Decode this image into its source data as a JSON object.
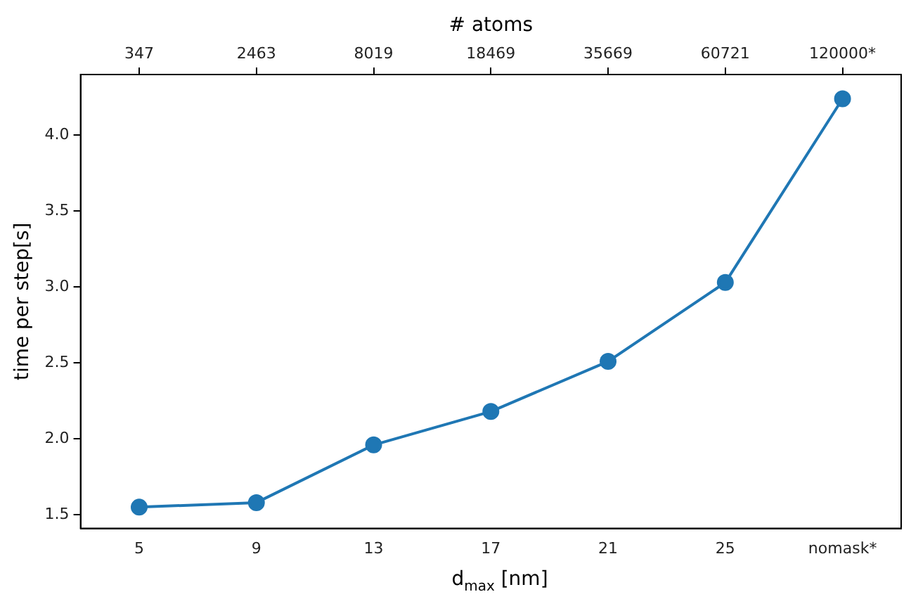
{
  "chart_data": {
    "type": "line",
    "xlabel": "d$_{max}$ [nm]",
    "ylabel": "time per step[s]",
    "x2label": "# atoms",
    "categories": [
      "5",
      "9",
      "13",
      "17",
      "21",
      "25",
      "nomask*"
    ],
    "annotations": [
      {
        "text": "347",
        "x": "5"
      },
      {
        "text": "2463",
        "x": "9"
      },
      {
        "text": "8019",
        "x": "13"
      },
      {
        "text": "18469",
        "x": "17"
      },
      {
        "text": "35669",
        "x": "21"
      },
      {
        "text": "60721",
        "x": "25"
      },
      {
        "text": "120000*",
        "x": "nomask*"
      }
    ],
    "series": [
      {
        "color": "#1f77b4",
        "values": [
          1.55,
          1.58,
          1.96,
          2.18,
          2.51,
          3.03,
          4.24
        ],
        "errors": [
          null,
          null,
          null,
          0.03,
          null,
          null,
          null
        ]
      }
    ],
    "ylim": [
      1.41,
      4.4
    ],
    "yticks": [
      1.5,
      {
        "value": 2,
        "label": "2.0"
      },
      2.5,
      {
        "value": 3,
        "label": "3.0"
      },
      3.5,
      {
        "value": 4,
        "label": "4.0"
      }
    ],
    "grid": false,
    "legend": false,
    "marker": "circle",
    "line_style": "solid"
  }
}
